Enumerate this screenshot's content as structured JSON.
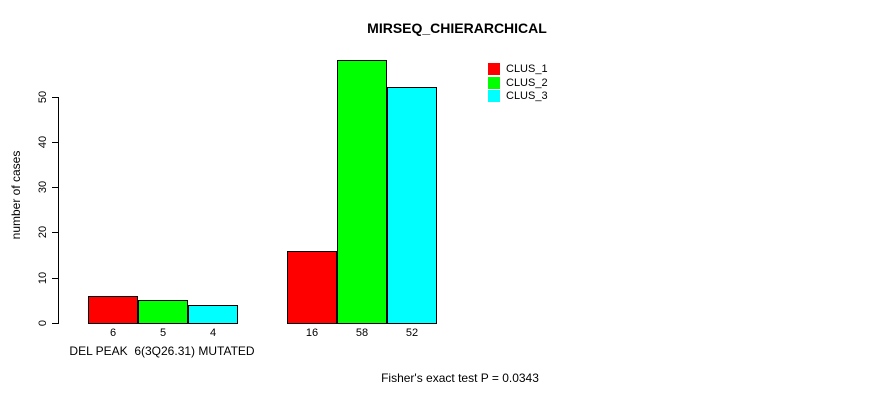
{
  "title": "MIRSEQ_CHIERARCHICAL",
  "footer": "Fisher's exact test P = 0.0343",
  "chart_data": {
    "type": "bar",
    "title": "MIRSEQ_CHIERARCHICAL",
    "xlabel": "",
    "ylabel": "number of cases",
    "ylim": [
      0,
      58
    ],
    "yticks": [
      0,
      10,
      20,
      30,
      40,
      50
    ],
    "grid": false,
    "legend_position": "top-right-inside",
    "categories": [
      "DEL PEAK  6(3Q26.31) MUTATED",
      ""
    ],
    "group_axis_label": "DEL PEAK  6(3Q26.31) MUTATED",
    "series": [
      {
        "name": "CLUS_1",
        "color": "#ff0000",
        "values": [
          6,
          16
        ]
      },
      {
        "name": "CLUS_2",
        "color": "#00ff00",
        "values": [
          5,
          58
        ]
      },
      {
        "name": "CLUS_3",
        "color": "#00ffff",
        "values": [
          4,
          52
        ]
      }
    ],
    "bar_value_labels": [
      [
        6,
        5,
        4
      ],
      [
        16,
        58,
        52
      ]
    ],
    "annotation": "Fisher's exact test P = 0.0343"
  }
}
